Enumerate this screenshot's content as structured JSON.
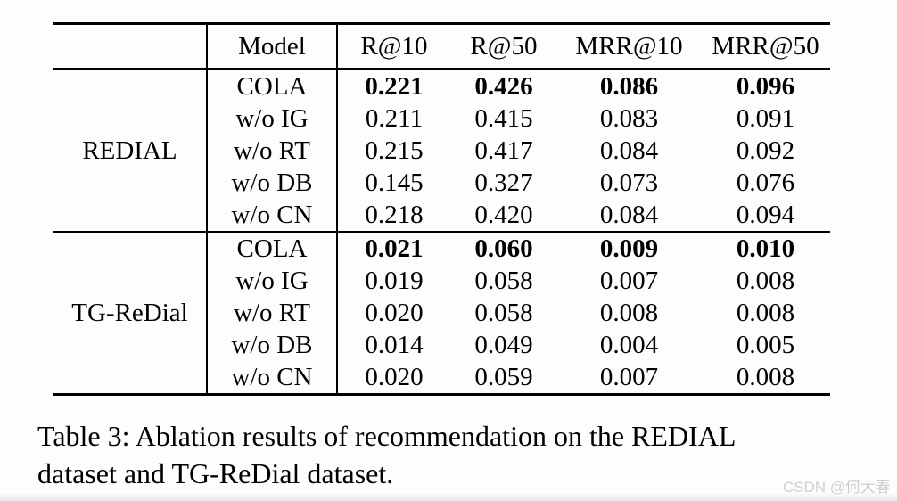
{
  "table": {
    "columns": [
      "Model",
      "R@10",
      "R@50",
      "MRR@10",
      "MRR@50"
    ],
    "sections": [
      {
        "dataset": "REDIAL",
        "rows": [
          {
            "model": "COLA",
            "values": [
              "0.221",
              "0.426",
              "0.086",
              "0.096"
            ],
            "bold": true
          },
          {
            "model": "w/o IG",
            "values": [
              "0.211",
              "0.415",
              "0.083",
              "0.091"
            ],
            "bold": false
          },
          {
            "model": "w/o RT",
            "values": [
              "0.215",
              "0.417",
              "0.084",
              "0.092"
            ],
            "bold": false
          },
          {
            "model": "w/o DB",
            "values": [
              "0.145",
              "0.327",
              "0.073",
              "0.076"
            ],
            "bold": false
          },
          {
            "model": "w/o CN",
            "values": [
              "0.218",
              "0.420",
              "0.084",
              "0.094"
            ],
            "bold": false
          }
        ]
      },
      {
        "dataset": "TG-ReDial",
        "rows": [
          {
            "model": "COLA",
            "values": [
              "0.021",
              "0.060",
              "0.009",
              "0.010"
            ],
            "bold": true
          },
          {
            "model": "w/o IG",
            "values": [
              "0.019",
              "0.058",
              "0.007",
              "0.008"
            ],
            "bold": false
          },
          {
            "model": "w/o RT",
            "values": [
              "0.020",
              "0.058",
              "0.008",
              "0.008"
            ],
            "bold": false
          },
          {
            "model": "w/o DB",
            "values": [
              "0.014",
              "0.049",
              "0.004",
              "0.005"
            ],
            "bold": false
          },
          {
            "model": "w/o CN",
            "values": [
              "0.020",
              "0.059",
              "0.007",
              "0.008"
            ],
            "bold": false
          }
        ]
      }
    ]
  },
  "caption": {
    "lines": [
      "Table 3: Ablation results of recommendation on the REDIAL",
      "dataset and TG-ReDial dataset."
    ]
  },
  "watermark": "CSDN @何大春"
}
